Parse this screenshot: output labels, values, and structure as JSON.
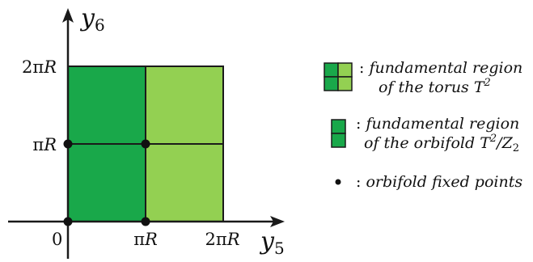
{
  "axes": {
    "y_symbol": "y",
    "y_index": "6",
    "x_symbol": "y",
    "x_index": "5"
  },
  "ticks": {
    "origin": "0",
    "x": [
      {
        "pi": "π",
        "r": "R"
      },
      {
        "two": "2",
        "pi": "π",
        "r": "R"
      }
    ],
    "y": [
      {
        "pi": "π",
        "r": "R"
      },
      {
        "two": "2",
        "pi": "π",
        "r": "R"
      }
    ]
  },
  "colors": {
    "dark_green": "#19a84a",
    "light_green": "#93d052",
    "edge": "#1a1a1a"
  },
  "legend": {
    "torus": {
      "colon": ":",
      "line1": "fundamental region",
      "line2_prefix": "of the torus",
      "symbol": "T",
      "exp": "2"
    },
    "orbifold": {
      "colon": ":",
      "line1": "fundamental region",
      "line2_prefix": "of the orbifold",
      "symbol": "T",
      "exp": "2",
      "slash": "/",
      "z": "Z",
      "z_index": "2"
    },
    "fixed_points": {
      "colon": ":",
      "text": "orbifold fixed points"
    }
  }
}
